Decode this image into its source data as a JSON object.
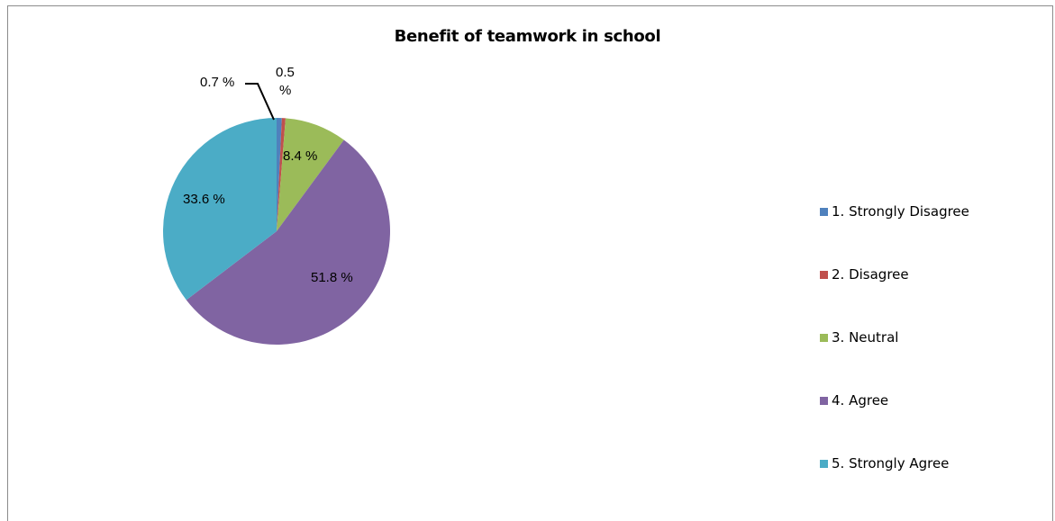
{
  "chart_data": {
    "type": "pie",
    "title": "Benefit of teamwork in school",
    "legend_position": "right",
    "slices": [
      {
        "label": "1. Strongly Disagree",
        "value": 0.7,
        "value_label": "0.7 %",
        "color": "#4f81bd"
      },
      {
        "label": "2. Disagree",
        "value": 0.5,
        "value_label": "0.5 %",
        "color": "#c0504d"
      },
      {
        "label": "3. Neutral",
        "value": 8.4,
        "value_label": "8.4 %",
        "color": "#9bbb59"
      },
      {
        "label": "4. Agree",
        "value": 51.8,
        "value_label": "51.8 %",
        "color": "#8064a2"
      },
      {
        "label": "5. Strongly Agree",
        "value": 33.6,
        "value_label": "33.6 %",
        "color": "#4bacc6"
      }
    ]
  }
}
